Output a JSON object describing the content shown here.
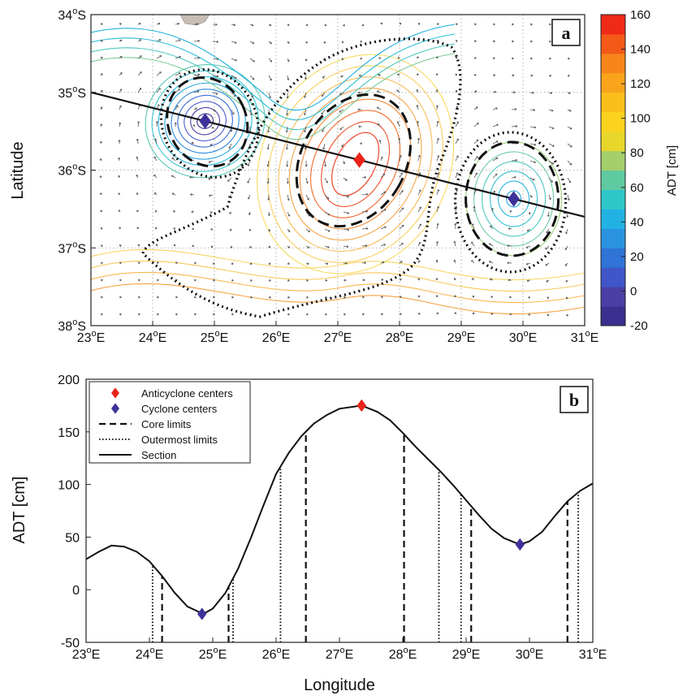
{
  "chart_data": [
    {
      "panel": "a",
      "type": "heatmap",
      "ylabel": "Latitude",
      "xticks": [
        "23",
        "24",
        "25",
        "26",
        "27",
        "28",
        "29",
        "30",
        "31"
      ],
      "xtick_suffix": "E",
      "yticks": [
        "34",
        "35",
        "36",
        "37",
        "38"
      ],
      "ytick_suffix": "S",
      "xlim": [
        23,
        31
      ],
      "ylim": [
        -38,
        -34
      ],
      "colorbar": {
        "label": "ADT [cm]",
        "ticks": [
          "160",
          "140",
          "120",
          "100",
          "80",
          "60",
          "40",
          "20",
          "0",
          "-20"
        ],
        "range": [
          -20,
          160
        ],
        "colors": [
          "#3b2f8f",
          "#4b3fa6",
          "#4055c8",
          "#2f74d6",
          "#2a93df",
          "#22b1e3",
          "#2fc6c9",
          "#5fcaa0",
          "#a5cf6a",
          "#e9d62a",
          "#fbd21d",
          "#fbbf1c",
          "#f9a41b",
          "#f7861a",
          "#f35a18",
          "#ef2a16"
        ]
      },
      "section": {
        "start": [
          23.0,
          -35.0
        ],
        "end": [
          31.0,
          -36.6
        ]
      },
      "anticyclone_centers": [
        {
          "lon": 27.35,
          "lat": -35.87
        }
      ],
      "cyclone_centers": [
        {
          "lon": 24.85,
          "lat": -35.37
        },
        {
          "lon": 29.85,
          "lat": -36.37
        }
      ]
    },
    {
      "panel": "b",
      "type": "line",
      "xlabel": "Longitude",
      "ylabel": "ADT [cm]",
      "xlim": [
        23,
        31
      ],
      "ylim": [
        -50,
        200
      ],
      "xticks": [
        "23",
        "24",
        "25",
        "26",
        "27",
        "28",
        "29",
        "30",
        "31"
      ],
      "xtick_suffix": "E",
      "yticks": [
        "200",
        "150",
        "100",
        "50",
        "0",
        "-50"
      ],
      "section": {
        "x": [
          23.0,
          23.2,
          23.4,
          23.6,
          23.8,
          24.0,
          24.2,
          24.4,
          24.6,
          24.85,
          25.0,
          25.2,
          25.4,
          25.6,
          25.8,
          26.0,
          26.2,
          26.4,
          26.6,
          26.8,
          27.0,
          27.35,
          27.6,
          27.8,
          28.0,
          28.2,
          28.4,
          28.6,
          28.8,
          29.0,
          29.2,
          29.4,
          29.6,
          29.85,
          30.0,
          30.2,
          30.4,
          30.6,
          30.8,
          31.0
        ],
        "y": [
          29,
          36,
          42,
          41,
          36,
          27,
          13,
          -3,
          -16,
          -23,
          -18,
          -3,
          20,
          49,
          80,
          110,
          130,
          146,
          158,
          166,
          172,
          175,
          169,
          161,
          149,
          136,
          124,
          112,
          99,
          85,
          71,
          58,
          49,
          43,
          46,
          55,
          70,
          84,
          94,
          101
        ]
      },
      "anticyclone_centers": [
        {
          "x": 27.35,
          "y": 175
        }
      ],
      "cyclone_centers": [
        {
          "x": 24.83,
          "y": -23
        },
        {
          "x": 29.85,
          "y": 43
        }
      ],
      "core_limits": [
        24.2,
        25.25,
        26.47,
        28.02,
        29.08,
        30.6
      ],
      "outermost_limits": [
        24.05,
        25.32,
        26.07,
        28.57,
        28.92,
        30.77
      ],
      "legend": {
        "entries": [
          "Anticyclone centers",
          "Cyclone centers",
          "Core limits",
          "Outermost limits",
          "Section"
        ],
        "position": "top-left"
      }
    }
  ]
}
